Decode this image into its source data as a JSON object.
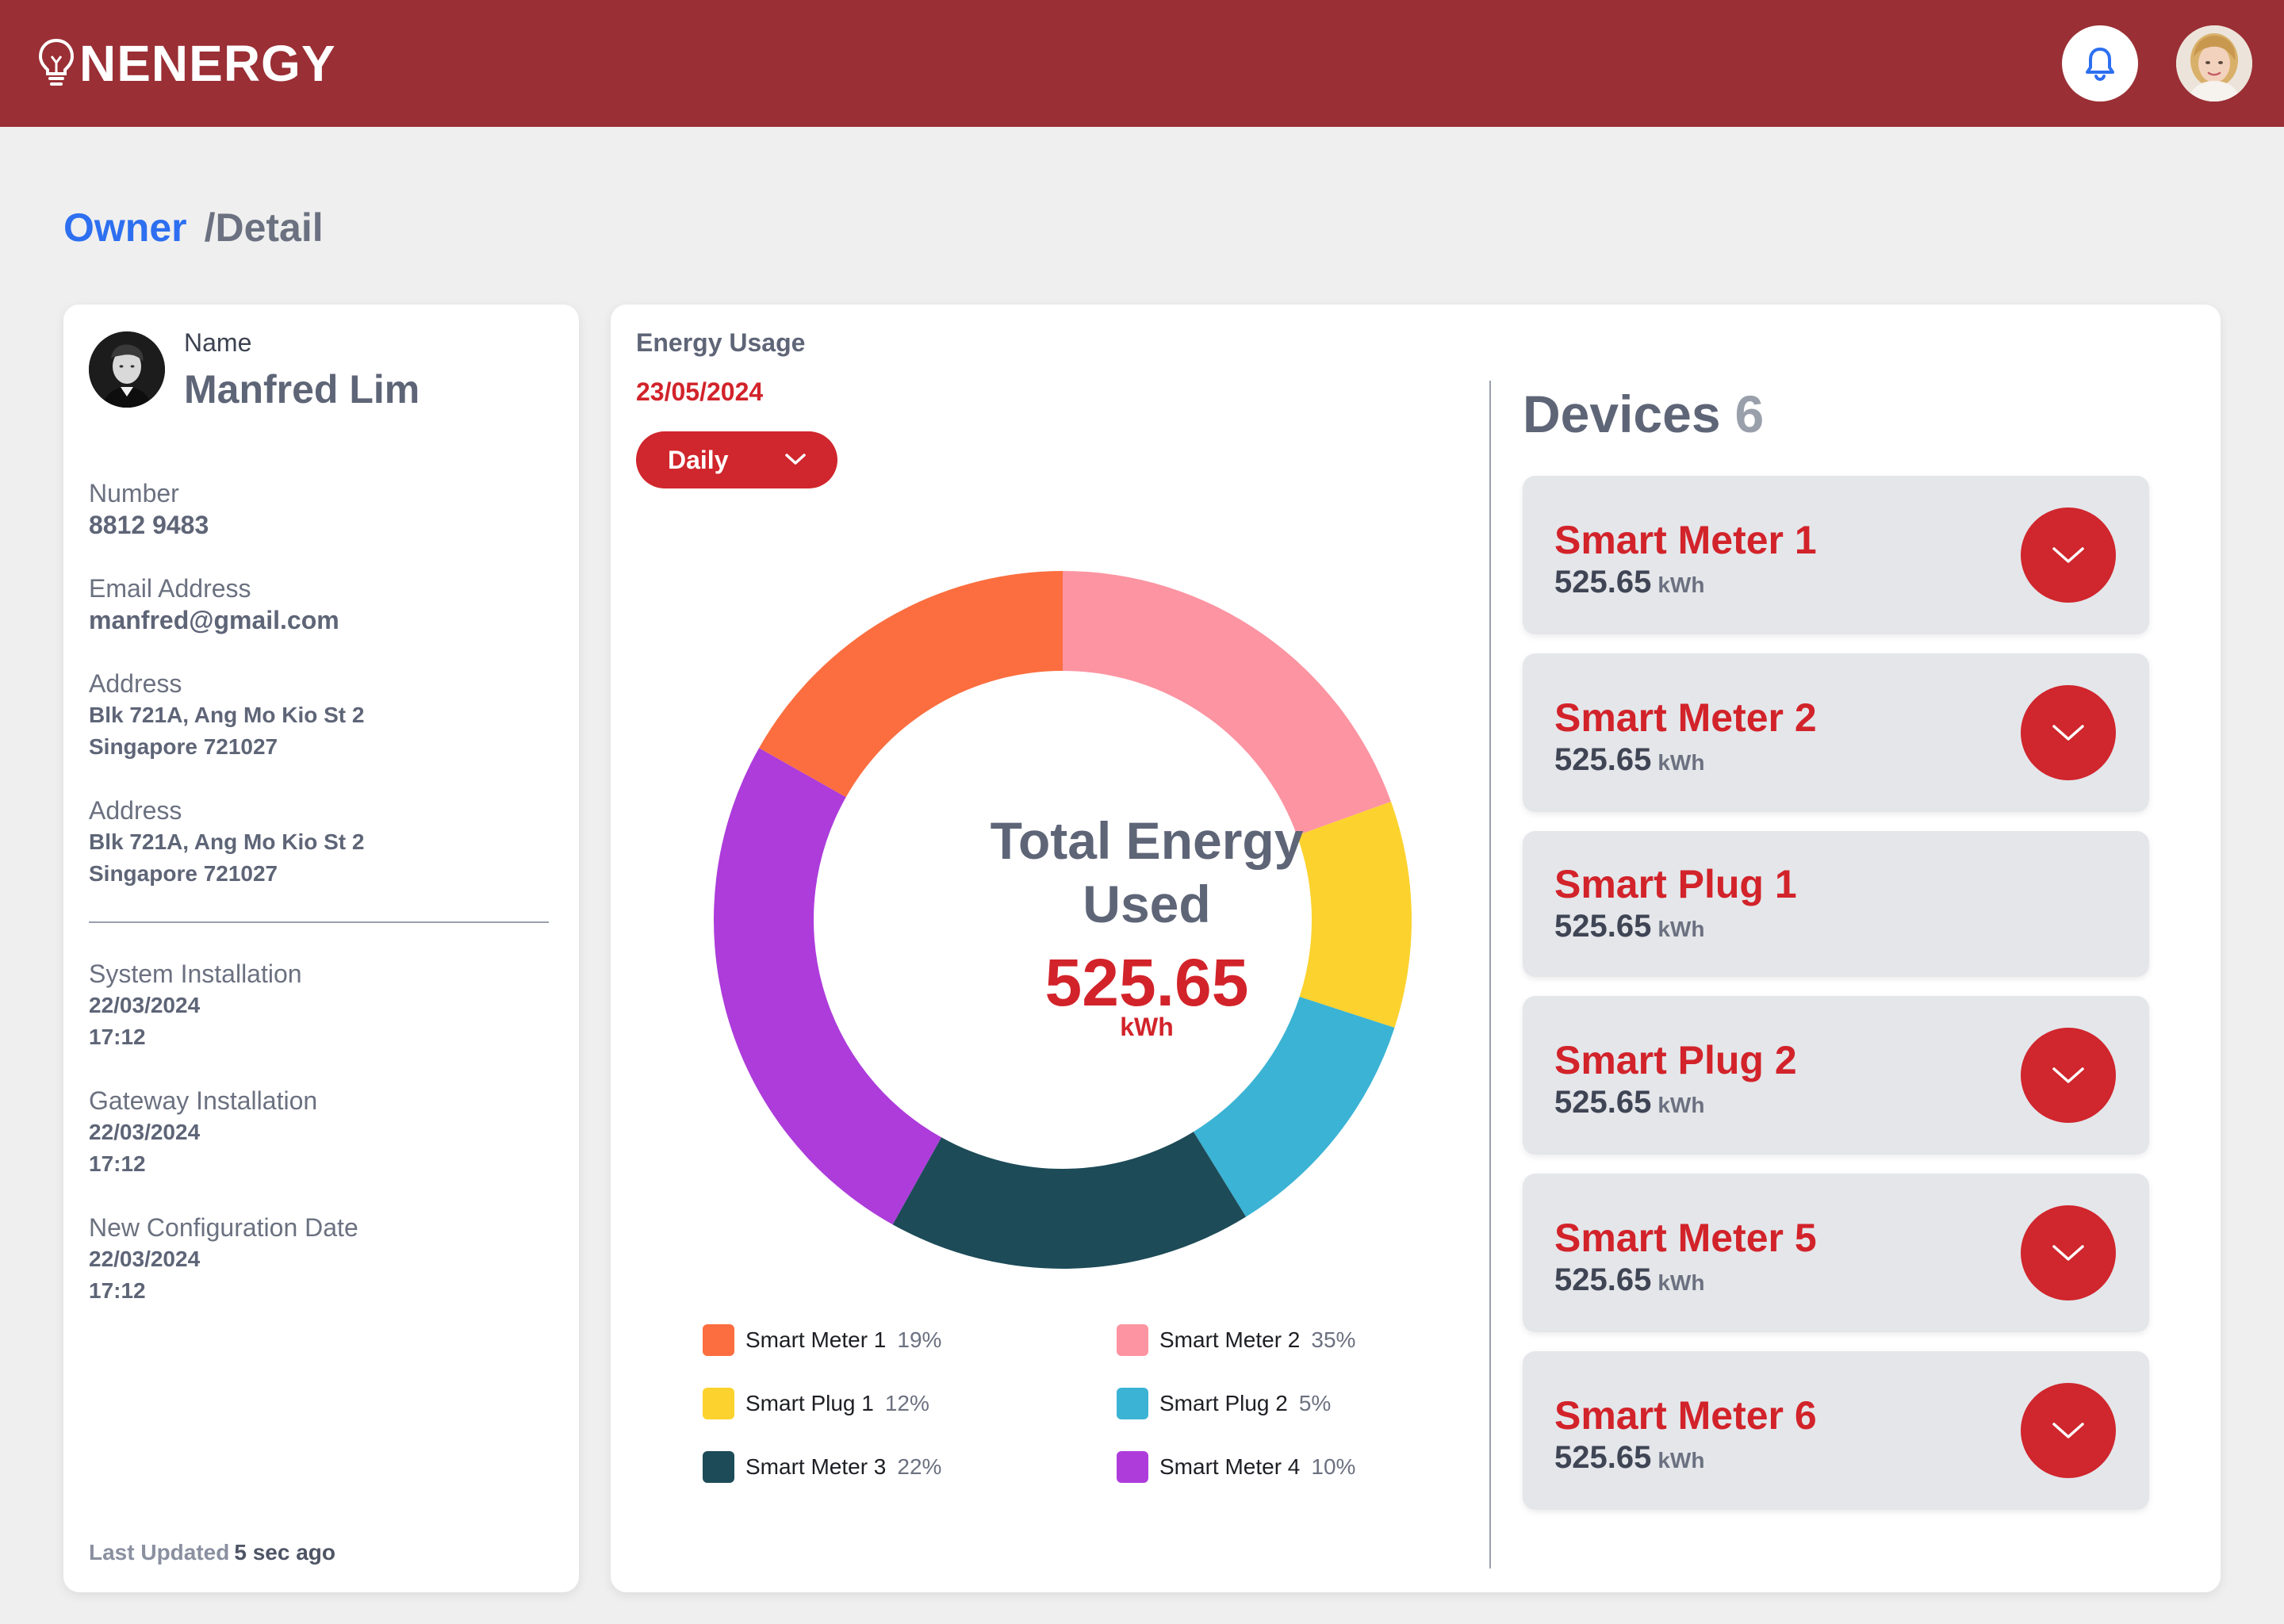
{
  "header": {
    "brand": "NENERGY",
    "bell_icon": "bell-icon",
    "brand_icon": "lightbulb-icon",
    "colors": {
      "bar": "#9a2f35",
      "accent": "#d0262d",
      "link": "#2d6ff0"
    }
  },
  "breadcrumb": {
    "root": "Owner",
    "current": "/Detail"
  },
  "owner": {
    "name_label": "Name",
    "name": "Manfred Lim",
    "fields": [
      {
        "label": "Number",
        "value": "8812 9483"
      },
      {
        "label": "Email Address",
        "value": "manfred@gmail.com"
      },
      {
        "label": "Address",
        "line1": "Blk 721A, Ang Mo Kio St 2",
        "line2": "Singapore 721027"
      },
      {
        "label": "Address",
        "line1": "Blk 721A, Ang Mo Kio St 2",
        "line2": "Singapore 721027"
      },
      {
        "label": "System Installation",
        "date": "22/03/2024",
        "time": "17:12"
      },
      {
        "label": "Gateway Installation",
        "date": "22/03/2024",
        "time": "17:12"
      },
      {
        "label": "New Configuration Date",
        "date": "22/03/2024",
        "time": "17:12"
      }
    ],
    "last_updated_label": "Last Updated",
    "last_updated_value": "5 sec ago"
  },
  "usage": {
    "title": "Energy Usage",
    "date": "23/05/2024",
    "period": "Daily",
    "center_title_1": "Total Energy",
    "center_title_2": "Used",
    "total": "525.65",
    "unit": "kWh"
  },
  "chart_data": {
    "type": "pie",
    "title": "",
    "slices": [
      {
        "name": "Smart Meter 2",
        "label": "35%",
        "value": 35,
        "color": "#fc94a2"
      },
      {
        "name": "Smart Plug 1",
        "label": "12%",
        "value": 12,
        "color": "#fcd22e"
      },
      {
        "name": "Smart Plug 2",
        "label": "5%",
        "value": 5,
        "color": "#3bb3d4"
      },
      {
        "name": "Smart Meter 3",
        "label": "22%",
        "value": 22,
        "color": "#1d4b58"
      },
      {
        "name": "Smart Meter 4",
        "label": "10%",
        "value": 10,
        "color": "#ad3cdb"
      },
      {
        "name": "Smart Meter 1",
        "label": "19%",
        "value": 19,
        "color": "#fc6e3f"
      }
    ],
    "rendered_arc_percent": [
      19.5,
      10.5,
      11.2,
      16.9,
      25.1,
      16.8
    ],
    "legend": [
      {
        "name": "Smart Meter 1",
        "pct": "19%",
        "color": "#fc6e3f"
      },
      {
        "name": "Smart Meter 2",
        "pct": "35%",
        "color": "#fc94a2"
      },
      {
        "name": "Smart Plug 1",
        "pct": "12%",
        "color": "#fcd22e"
      },
      {
        "name": "Smart Plug 2",
        "pct": "5%",
        "color": "#3bb3d4"
      },
      {
        "name": "Smart Meter 3",
        "pct": "22%",
        "color": "#1d4b58"
      },
      {
        "name": "Smart Meter 4",
        "pct": "10%",
        "color": "#ad3cdb"
      }
    ]
  },
  "devices": {
    "title": "Devices",
    "count": "6",
    "items": [
      {
        "name": "Smart Meter 1",
        "value": "525.65",
        "unit": "kWh",
        "expandable": true
      },
      {
        "name": "Smart Meter 2",
        "value": "525.65",
        "unit": "kWh",
        "expandable": true
      },
      {
        "name": "Smart Plug 1",
        "value": "525.65",
        "unit": "kWh",
        "expandable": false
      },
      {
        "name": "Smart Plug 2",
        "value": "525.65",
        "unit": "kWh",
        "expandable": true
      },
      {
        "name": "Smart Meter 5",
        "value": "525.65",
        "unit": "kWh",
        "expandable": true
      },
      {
        "name": "Smart Meter 6",
        "value": "525.65",
        "unit": "kWh",
        "expandable": true
      }
    ]
  }
}
